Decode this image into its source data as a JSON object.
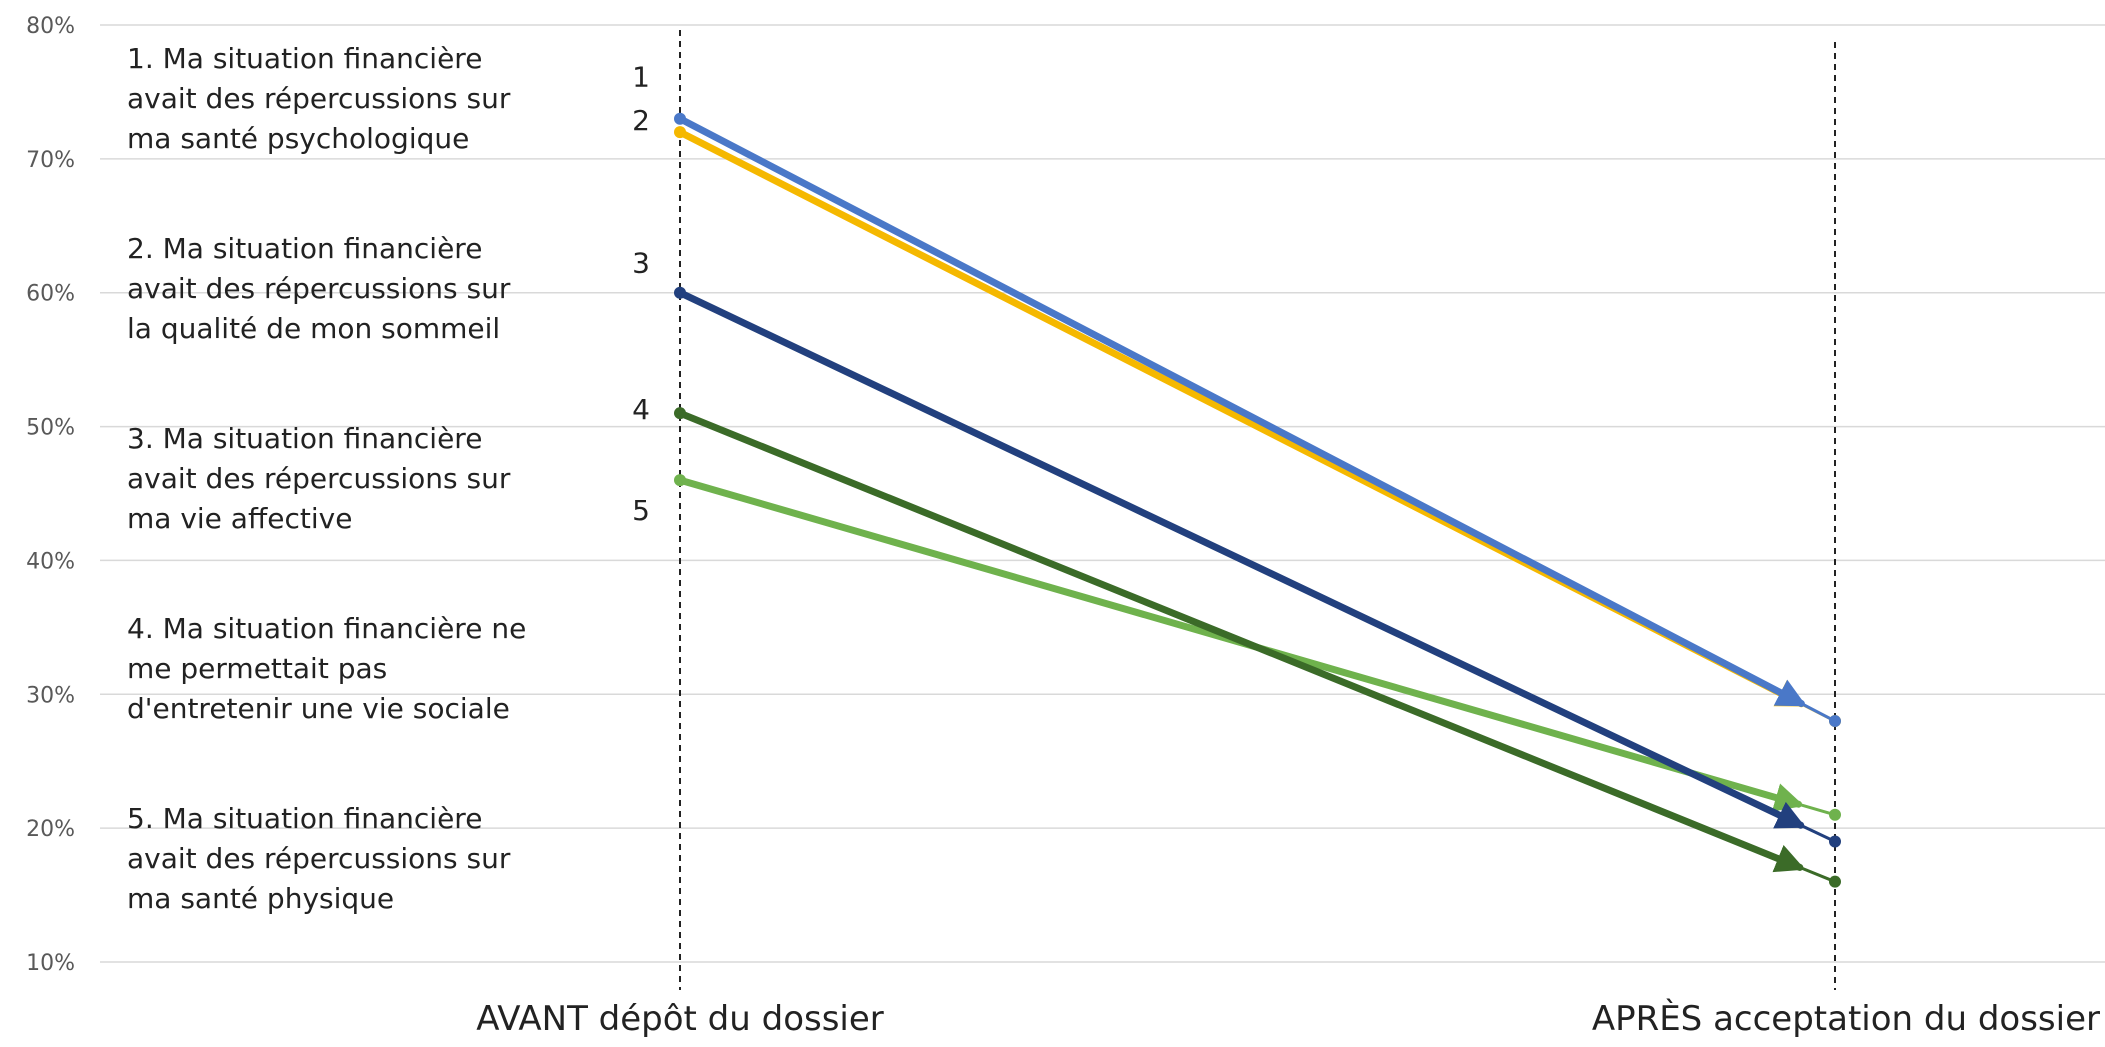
{
  "chart_data": {
    "type": "line",
    "categories": [
      "AVANT dépôt du dossier",
      "APRÈS acceptation du dossier"
    ],
    "ylim": [
      0.1,
      0.8
    ],
    "yticks": [
      {
        "value": 0.1,
        "label": "10%"
      },
      {
        "value": 0.2,
        "label": "20%"
      },
      {
        "value": 0.3,
        "label": "30%"
      },
      {
        "value": 0.4,
        "label": "40%"
      },
      {
        "value": 0.5,
        "label": "50%"
      },
      {
        "value": 0.6,
        "label": "60%"
      },
      {
        "value": 0.7,
        "label": "70%"
      },
      {
        "value": 0.8,
        "label": "80%"
      }
    ],
    "grid": true,
    "series": [
      {
        "number": "1",
        "values": [
          0.73,
          0.28
        ],
        "color": "#4a78c8"
      },
      {
        "number": "2",
        "values": [
          0.72,
          0.28
        ],
        "color": "#f5b800"
      },
      {
        "number": "3",
        "values": [
          0.6,
          0.19
        ],
        "color": "#22407e"
      },
      {
        "number": "4",
        "values": [
          0.51,
          0.16
        ],
        "color": "#3b6b28"
      },
      {
        "number": "5",
        "values": [
          0.46,
          0.21
        ],
        "color": "#6fb24d"
      }
    ],
    "annotations": [
      [
        "1. Ma situation financière",
        "avait des répercussions sur",
        "ma santé psychologique"
      ],
      [
        "2. Ma situation financière",
        "avait des répercussions sur",
        "la qualité de mon sommeil"
      ],
      [
        "3. Ma situation financière",
        "avait des répercussions sur",
        "ma vie affective"
      ],
      [
        "4. Ma situation financière ne",
        "me permettait pas",
        "d'entretenir une vie sociale"
      ],
      [
        "5. Ma situation financière",
        "avait des répercussions sur",
        "ma santé physique"
      ]
    ]
  }
}
